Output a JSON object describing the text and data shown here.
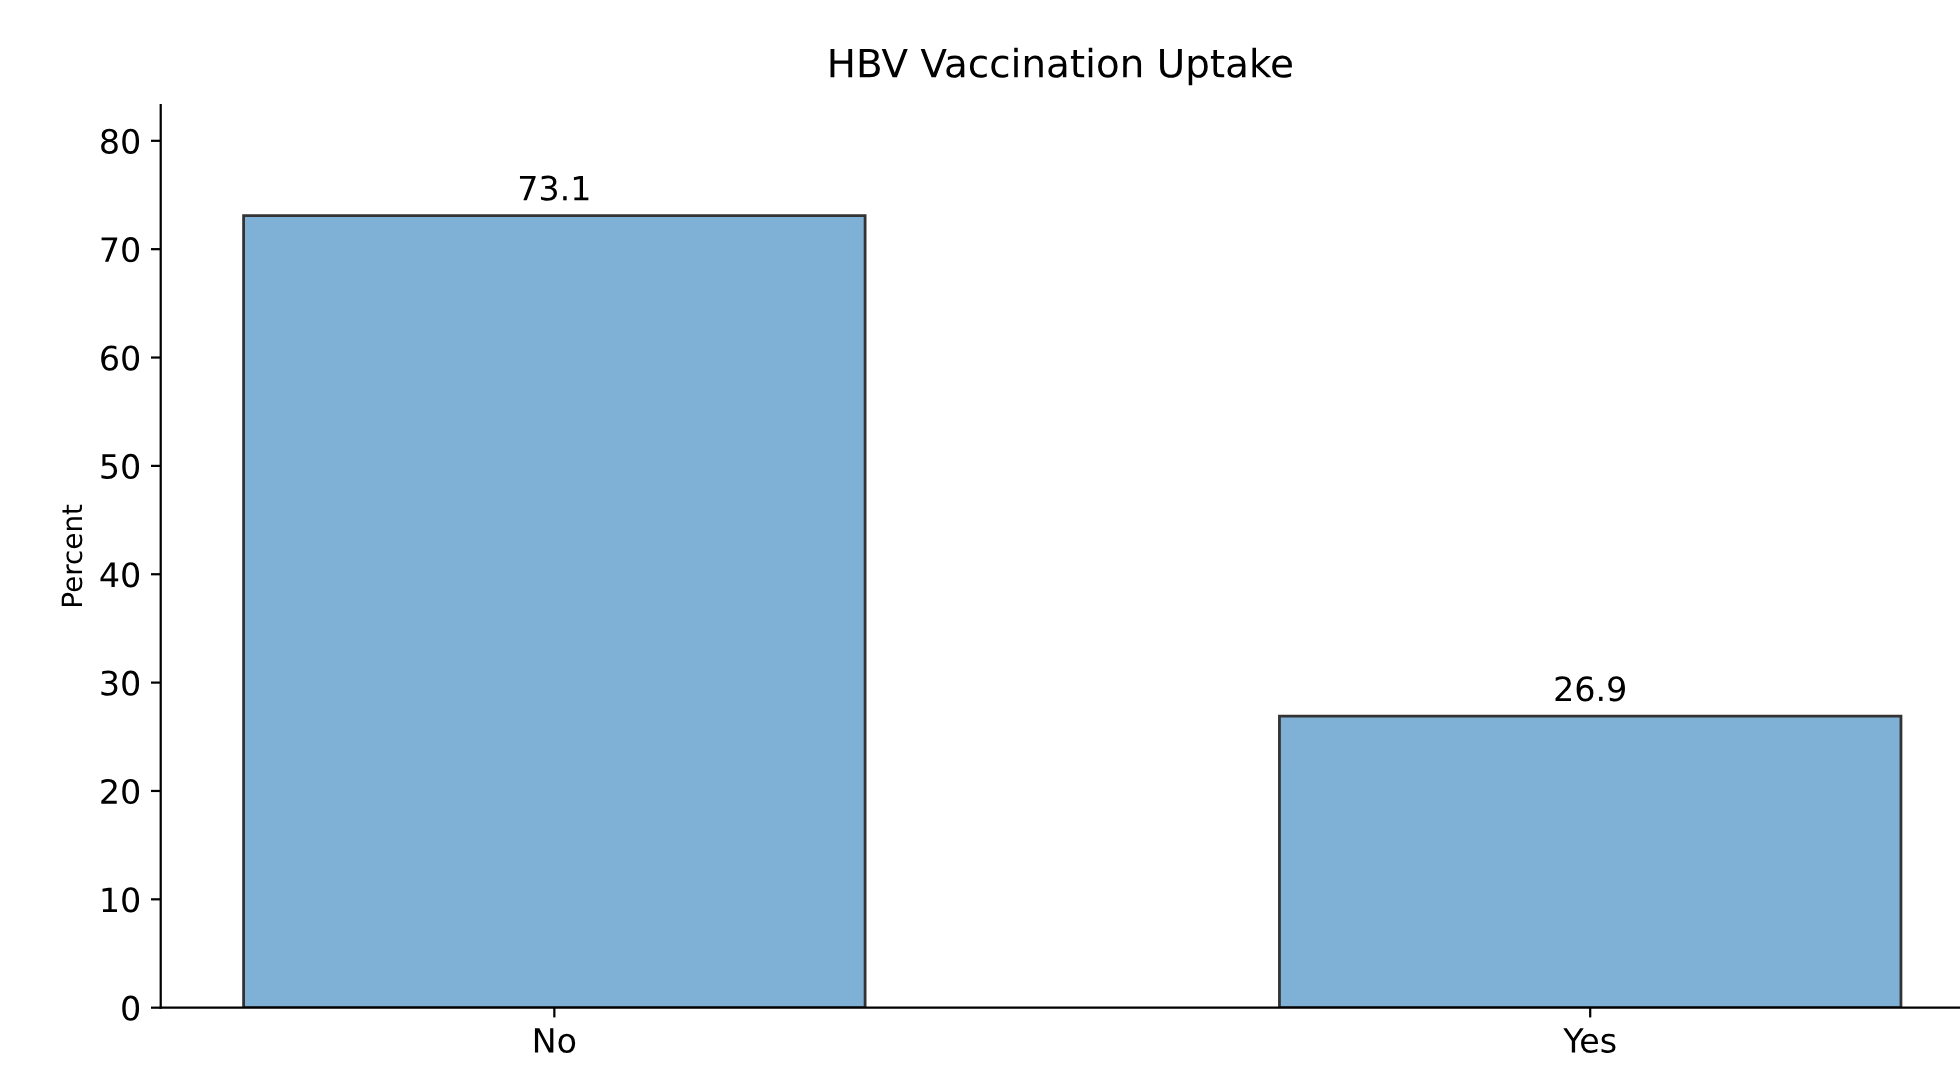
{
  "chart_data": {
    "type": "bar",
    "title": "HBV Vaccination Uptake",
    "ylabel": "Percent",
    "categories": [
      "No",
      "Yes"
    ],
    "values": [
      73.1,
      26.9
    ],
    "color": "#7fb0d5",
    "data_labels": true,
    "ylim": [
      0,
      83.3
    ],
    "yticks": [
      0,
      10,
      20,
      30,
      40,
      50,
      60,
      70,
      80
    ],
    "grid": false,
    "legend": false
  }
}
